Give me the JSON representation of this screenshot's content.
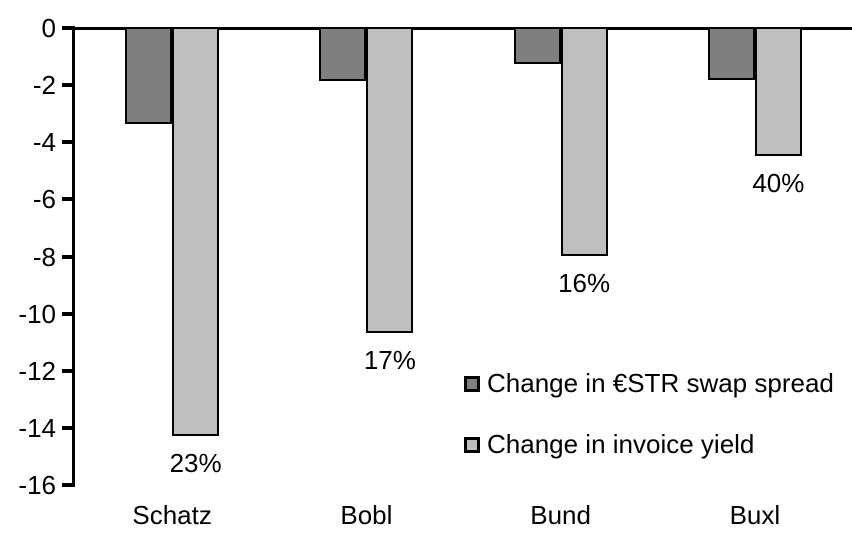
{
  "chart_data": {
    "type": "bar",
    "title": "",
    "xlabel": "",
    "ylabel": "",
    "categories": [
      "Schatz",
      "Bobl",
      "Bund",
      "Buxl"
    ],
    "series": [
      {
        "name": "Change in €STR swap spread",
        "color": "#7f7f7f",
        "values": [
          -3.3,
          -1.8,
          -1.2,
          -1.75
        ]
      },
      {
        "name": "Change in invoice yield",
        "color": "#bfbfbf",
        "values": [
          -14.2,
          -10.6,
          -7.9,
          -4.4
        ],
        "point_labels": [
          "23%",
          "17%",
          "16%",
          "40%"
        ]
      }
    ],
    "ylim": [
      -16,
      0
    ],
    "yticks": [
      0,
      -2,
      -4,
      -6,
      -8,
      -10,
      -12,
      -14,
      -16
    ],
    "grid": false,
    "legend_position": "inside-lower-right",
    "bar_outline_color": "#000000",
    "axis_color": "#000000",
    "background_color": "#ffffff"
  }
}
